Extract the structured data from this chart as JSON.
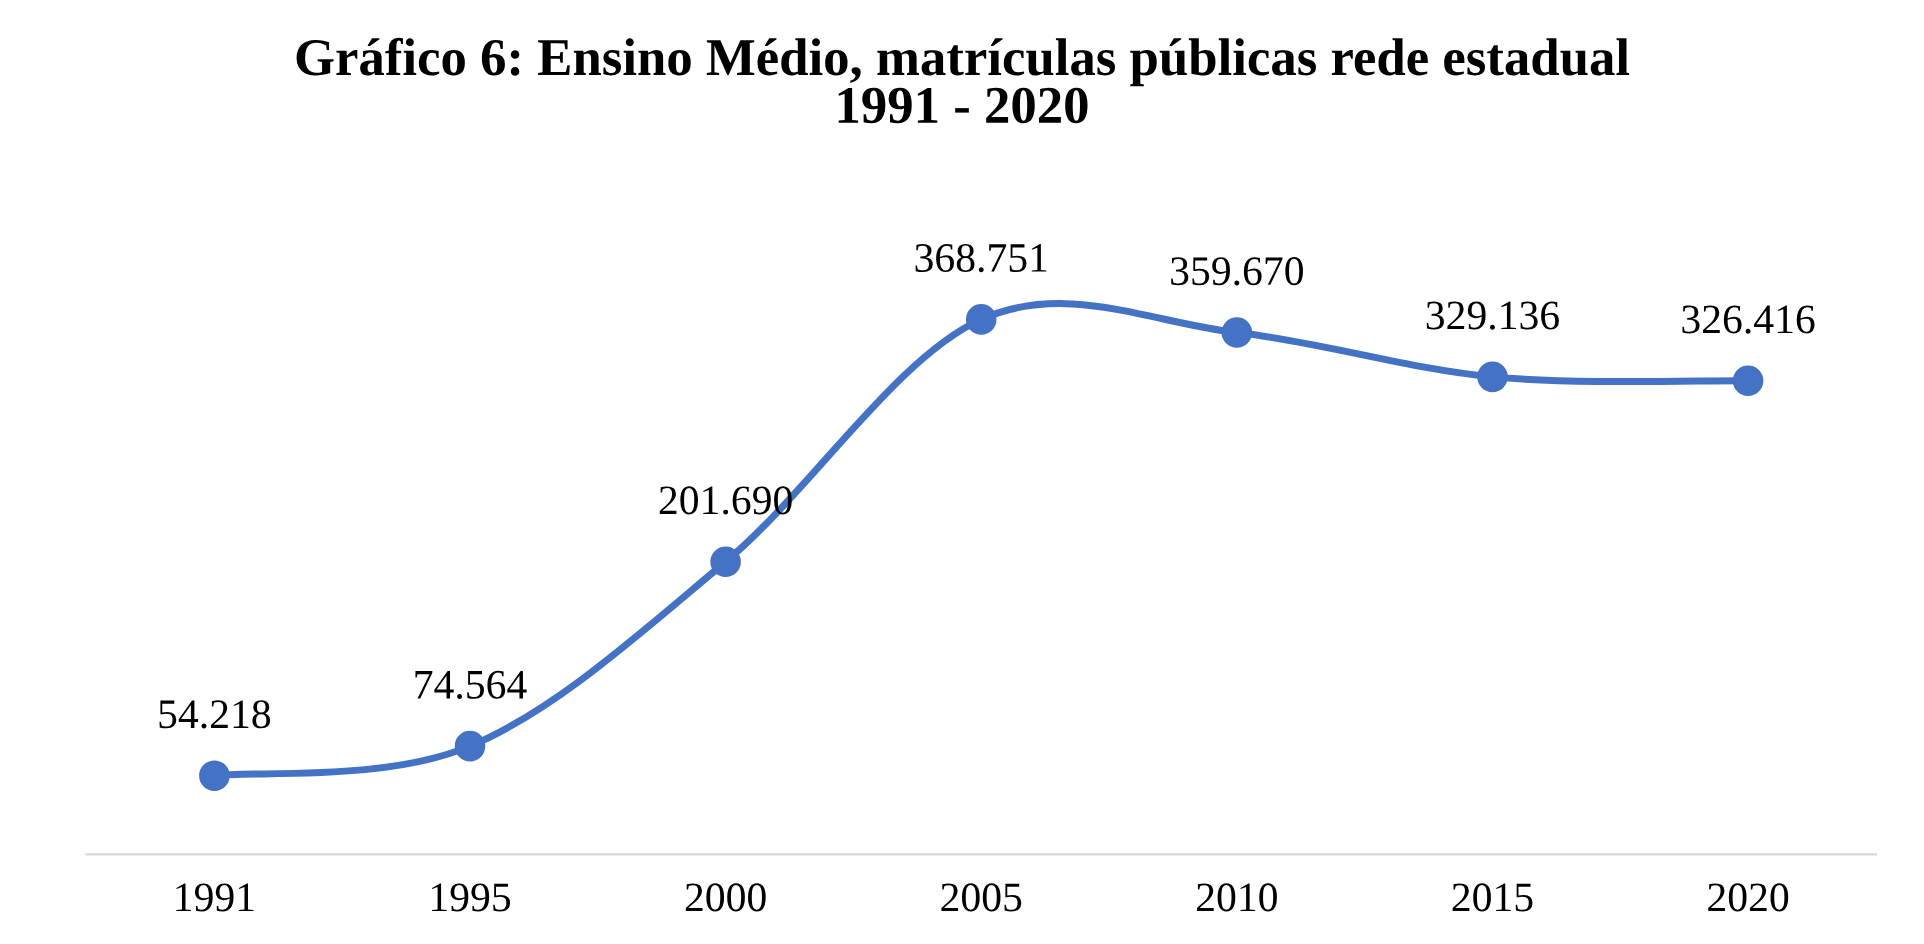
{
  "chart_data": {
    "type": "line",
    "title": "Gráfico 6: Ensino Médio, matrículas públicas rede estadual\n1991 - 2020",
    "categories": [
      "1991",
      "1995",
      "2000",
      "2005",
      "2010",
      "2015",
      "2020"
    ],
    "series": [
      {
        "color": "#4472c4",
        "values": [
          54218,
          74564,
          201690,
          368751,
          359670,
          329136,
          326416
        ],
        "value_labels": [
          "54.218",
          "74.564",
          "201.690",
          "368.751",
          "359.670",
          "329.136",
          "326.416"
        ]
      }
    ],
    "marker": "circle",
    "line_style": "solid",
    "grid": false
  }
}
